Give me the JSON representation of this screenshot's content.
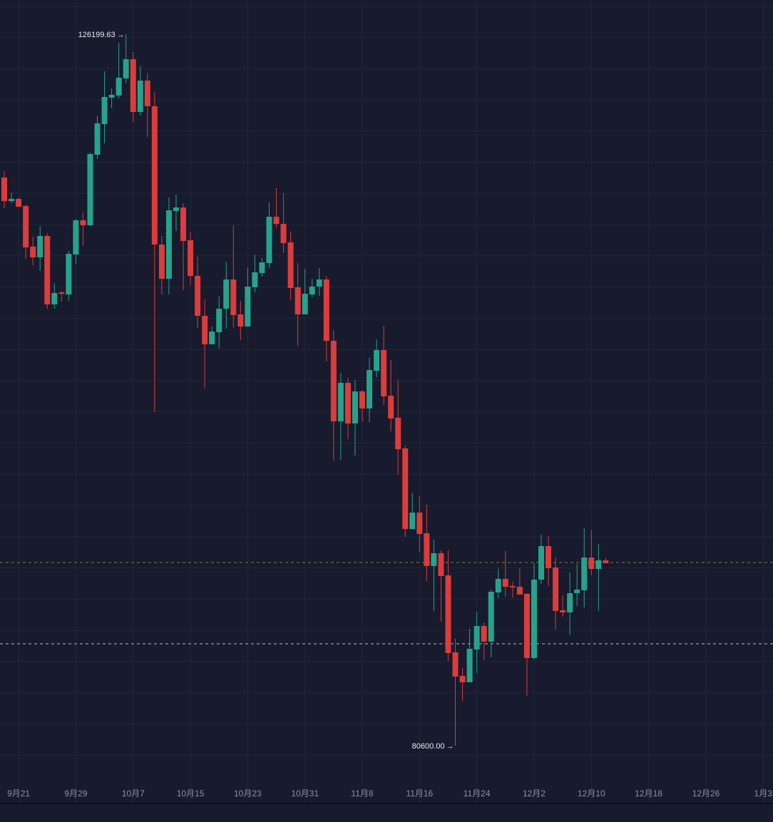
{
  "chart_data": {
    "type": "candlestick",
    "title": "",
    "xlabel": "",
    "ylabel": "",
    "colors": {
      "background": "#171b2d",
      "grid": "#21263a",
      "up": "#26a38b",
      "down": "#dc3c3c",
      "last_price_line": "#6f8a3a",
      "ref_line": "#b9bdc9",
      "tick_text": "#8a90a6"
    },
    "grid": true,
    "y_grid_step": 2000,
    "ylim": [
      78500,
      128400
    ],
    "x_ticks": [
      "9月21",
      "9月29",
      "10月7",
      "10月15",
      "10月23",
      "10月31",
      "11月8",
      "11月16",
      "11月24",
      "12月2",
      "12月10",
      "12月18",
      "12月26",
      "1月3"
    ],
    "annotations": {
      "high": {
        "label": "126199.63",
        "value": 126199.63,
        "date": "10月6"
      },
      "low": {
        "label": "80600.00",
        "value": 80600.0,
        "date": "11月21"
      }
    },
    "horizontal_lines": [
      {
        "value": 92344,
        "style": "dashed",
        "color": "#6f8a3a"
      },
      {
        "value": 87135,
        "style": "dashed",
        "color": "#b9bdc9"
      }
    ],
    "columns": [
      "date",
      "open",
      "high",
      "low",
      "close"
    ],
    "candles": [
      [
        "9月19",
        117016,
        117427,
        115051,
        115508
      ],
      [
        "9月20",
        115508,
        116056,
        115371,
        115645
      ],
      [
        "9月21",
        115645,
        115736,
        115142,
        115142
      ],
      [
        "9月22",
        115188,
        115280,
        111807,
        112538
      ],
      [
        "9月23",
        112584,
        113223,
        111396,
        111898
      ],
      [
        "9月24",
        111898,
        113909,
        111030,
        113269
      ],
      [
        "9月25",
        113269,
        113452,
        108609,
        108883
      ],
      [
        "9月26",
        108883,
        110254,
        108609,
        109614
      ],
      [
        "9月27",
        109660,
        109751,
        109066,
        109568
      ],
      [
        "9月28",
        109523,
        112310,
        109111,
        112127
      ],
      [
        "9月29",
        112081,
        114366,
        111487,
        114274
      ],
      [
        "9月30",
        114274,
        114777,
        112629,
        113955
      ],
      [
        "10月1",
        113955,
        118615,
        113909,
        118524
      ],
      [
        "10月2",
        118478,
        120945,
        118204,
        120488
      ],
      [
        "10月3",
        120442,
        123824,
        119209,
        122179
      ],
      [
        "10月4",
        122133,
        122727,
        121448,
        122316
      ],
      [
        "10月5",
        122270,
        125651,
        122087,
        123412
      ],
      [
        "10月6",
        123367,
        126199.63,
        123047,
        124600
      ],
      [
        "10月7",
        124600,
        125057,
        120534,
        121219
      ],
      [
        "10月8",
        121219,
        124143,
        120991,
        123230
      ],
      [
        "10月9",
        123230,
        123687,
        119620,
        121585
      ],
      [
        "10月10",
        121585,
        122499,
        101984,
        112721
      ],
      [
        "10月11",
        112721,
        113269,
        109523,
        110528
      ],
      [
        "10月12",
        110528,
        115736,
        109523,
        114914
      ],
      [
        "10月13",
        114869,
        115920,
        113589,
        115097
      ],
      [
        "10月14",
        115097,
        115371,
        109797,
        112950
      ],
      [
        "10月15",
        112995,
        113544,
        110117,
        110711
      ],
      [
        "10月16",
        110711,
        111945,
        107376,
        108152
      ],
      [
        "10月17",
        108152,
        109203,
        103492,
        106325
      ],
      [
        "10月18",
        106325,
        107467,
        106325,
        107147
      ],
      [
        "10月19",
        107101,
        109386,
        106051,
        108609
      ],
      [
        "10月20",
        108609,
        111625,
        107330,
        110482
      ],
      [
        "10月21",
        110482,
        113955,
        107421,
        108198
      ],
      [
        "10月22",
        108244,
        109111,
        106599,
        107467
      ],
      [
        "10月23",
        107467,
        111259,
        107467,
        110026
      ],
      [
        "10月24",
        109980,
        112081,
        109660,
        110939
      ],
      [
        "10月25",
        110894,
        111853,
        110665,
        111579
      ],
      [
        "10月26",
        111533,
        115417,
        111214,
        114503
      ],
      [
        "10月27",
        114503,
        116331,
        113818,
        114046
      ],
      [
        "10月28",
        114046,
        116011,
        112173,
        112813
      ],
      [
        "10月29",
        112858,
        113544,
        109157,
        109934
      ],
      [
        "10月30",
        109980,
        111533,
        106233,
        108244
      ],
      [
        "10月31",
        108244,
        111168,
        108244,
        109568
      ],
      [
        "11月1",
        109523,
        110528,
        109340,
        110026
      ],
      [
        "11月2",
        110026,
        111214,
        109432,
        110482
      ],
      [
        "11月3",
        110482,
        110711,
        105228,
        106553
      ],
      [
        "11月4",
        106553,
        107238,
        98877,
        101390
      ],
      [
        "11月5",
        101390,
        104497,
        98923,
        103857
      ],
      [
        "11月6",
        103857,
        104177,
        100248,
        101253
      ],
      [
        "11月7",
        101253,
        104040,
        99197,
        103309
      ],
      [
        "11月8",
        103309,
        103401,
        101344,
        102213
      ],
      [
        "11月9",
        102213,
        105457,
        101344,
        104680
      ],
      [
        "11月10",
        104634,
        106645,
        104223,
        105959
      ],
      [
        "11月11",
        105959,
        107513,
        102441,
        102989
      ],
      [
        "11月12",
        103035,
        105319,
        100750,
        101573
      ],
      [
        "11月13",
        101619,
        104040,
        97963,
        99608
      ],
      [
        "11月14",
        99654,
        99837,
        93988,
        94491
      ],
      [
        "11月15",
        94491,
        96821,
        94491,
        95542
      ],
      [
        "11月16",
        95542,
        96593,
        92983,
        94171
      ],
      [
        "11月17",
        94217,
        96044,
        91156,
        92115
      ],
      [
        "11月18",
        92115,
        93806,
        89237,
        92938
      ],
      [
        "11月19",
        92938,
        93120,
        88551,
        91475
      ],
      [
        "11月20",
        91521,
        93120,
        86038,
        86541
      ],
      [
        "11月21",
        86587,
        87455,
        80600,
        85033
      ],
      [
        "11月22",
        85079,
        85581,
        83480,
        84668
      ],
      [
        "11月23",
        84668,
        88094,
        84668,
        86815
      ],
      [
        "11月24",
        86769,
        89191,
        85262,
        88277
      ],
      [
        "11月25",
        88277,
        88506,
        86084,
        87272
      ],
      [
        "11月26",
        87272,
        90607,
        86267,
        90470
      ],
      [
        "11月27",
        90425,
        91932,
        90059,
        91293
      ],
      [
        "11月28",
        91293,
        93075,
        90150,
        90790
      ],
      [
        "11月29",
        90836,
        91110,
        90105,
        90744
      ],
      [
        "11月30",
        90790,
        91978,
        90287,
        90287
      ],
      [
        "12月1",
        90333,
        90379,
        83800,
        86221
      ],
      [
        "12月2",
        86221,
        92298,
        86130,
        91247
      ],
      [
        "12月3",
        91247,
        94125,
        90973,
        93394
      ],
      [
        "12月4",
        93394,
        94034,
        90836,
        91978
      ],
      [
        "12月5",
        92024,
        92663,
        88049,
        89237
      ],
      [
        "12月6",
        89282,
        90242,
        88871,
        89145
      ],
      [
        "12月7",
        89145,
        91704,
        87683,
        90379
      ],
      [
        "12月8",
        90379,
        92252,
        89556,
        90607
      ],
      [
        "12月9",
        90562,
        94536,
        89465,
        92663
      ],
      [
        "12月10",
        92663,
        94445,
        91521,
        91932
      ],
      [
        "12月11",
        91932,
        93531,
        89237,
        92481
      ],
      [
        "12月12",
        92481,
        92618,
        92298,
        92298
      ]
    ]
  }
}
